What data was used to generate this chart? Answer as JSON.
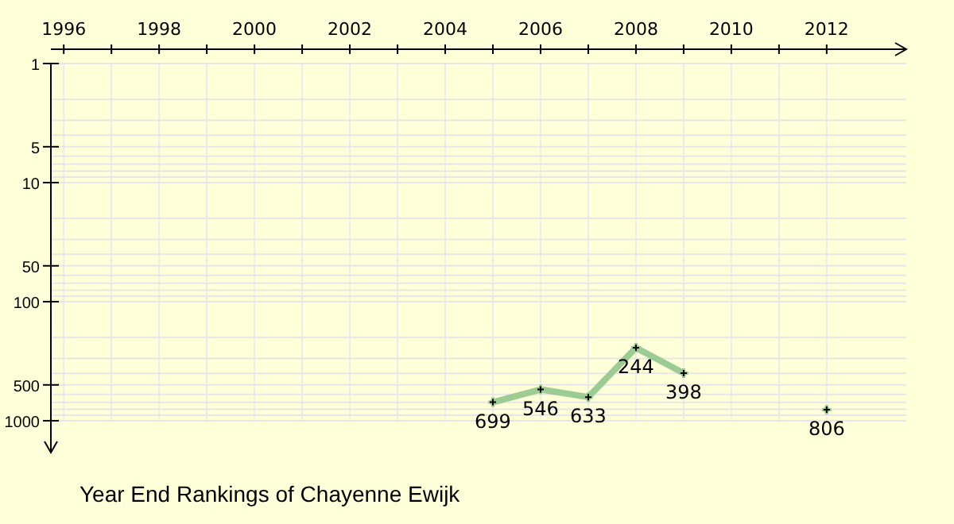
{
  "chart_data": {
    "type": "line",
    "title": "Year End Rankings of Chayenne Ewijk",
    "log": "y",
    "grid": true,
    "marker": "cross",
    "line_style": "solid",
    "data_labels": true,
    "xlim": [
      1995.73,
      2013.67
    ],
    "xticks": [
      1996,
      {
        "value": 1997,
        "label": null
      },
      1998,
      {
        "value": 1999,
        "label": null
      },
      2000,
      {
        "value": 2001,
        "label": null
      },
      2002,
      {
        "value": 2003,
        "label": null
      },
      2004,
      {
        "value": 2005,
        "label": null
      },
      2006,
      {
        "value": 2007,
        "label": null
      },
      2008,
      {
        "value": 2009,
        "label": null
      },
      2010,
      {
        "value": 2011,
        "label": null
      },
      2012
    ],
    "ylim": [
      1850,
      1
    ],
    "yticks": [
      1,
      {
        "value": 2,
        "label": null
      },
      {
        "value": 3,
        "label": null
      },
      {
        "value": 4,
        "label": null
      },
      5,
      {
        "value": 6,
        "label": null
      },
      {
        "value": 7,
        "label": null
      },
      {
        "value": 8,
        "label": null
      },
      {
        "value": 9,
        "label": null
      },
      10,
      {
        "value": 20,
        "label": null
      },
      {
        "value": 30,
        "label": null
      },
      {
        "value": 40,
        "label": null
      },
      50,
      {
        "value": 60,
        "label": null
      },
      {
        "value": 70,
        "label": null
      },
      {
        "value": 80,
        "label": null
      },
      {
        "value": 90,
        "label": null
      },
      100,
      {
        "value": 200,
        "label": null
      },
      {
        "value": 300,
        "label": null
      },
      {
        "value": 400,
        "label": null
      },
      500,
      {
        "value": 600,
        "label": null
      },
      {
        "value": 700,
        "label": null
      },
      {
        "value": 800,
        "label": null
      },
      {
        "value": 900,
        "label": null
      },
      1000
    ],
    "x": [
      2005,
      2006,
      2007,
      2008,
      2009,
      2010,
      2011,
      2012
    ],
    "series": [
      {
        "color": "#9ccc94",
        "values": [
          699,
          546,
          633,
          244,
          398,
          null,
          null,
          806
        ]
      }
    ]
  }
}
